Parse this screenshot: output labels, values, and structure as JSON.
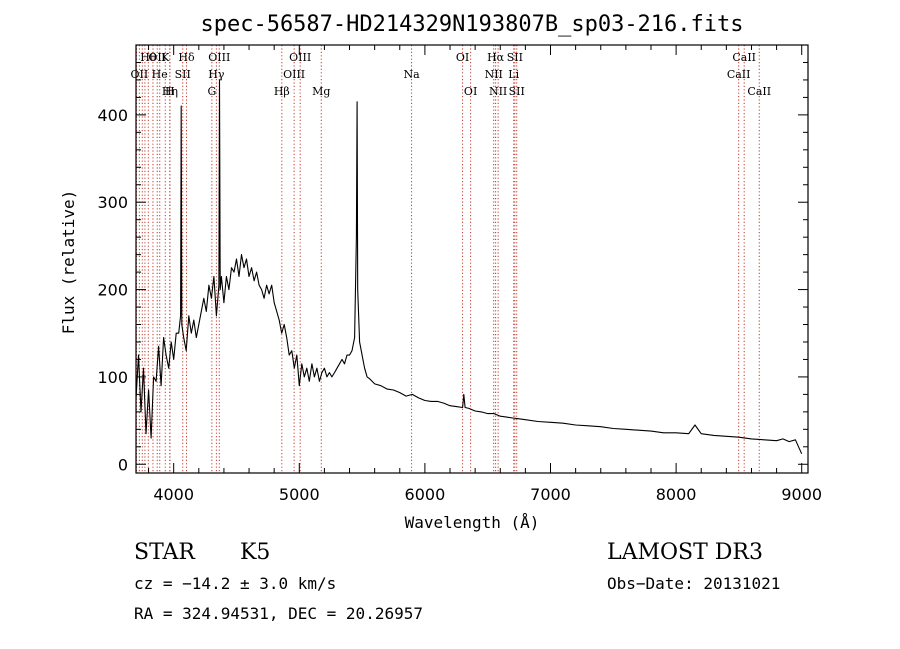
{
  "chart_data": {
    "type": "line",
    "title": "spec-56587-HD214329N193807B_sp03-216.fits",
    "xlabel": "Wavelength (Å)",
    "ylabel": "Flux (relative)",
    "xlim": [
      3700,
      9050
    ],
    "ylim": [
      -10,
      480
    ],
    "xticks": [
      4000,
      5000,
      6000,
      7000,
      8000,
      9000
    ],
    "yticks": [
      0,
      100,
      200,
      300,
      400
    ],
    "grid": false,
    "series": [
      {
        "name": "flux",
        "x": [
          3700,
          3720,
          3740,
          3760,
          3780,
          3800,
          3820,
          3840,
          3860,
          3880,
          3900,
          3920,
          3940,
          3960,
          3980,
          4000,
          4020,
          4040,
          4055,
          4060,
          4065,
          4080,
          4100,
          4120,
          4140,
          4160,
          4180,
          4200,
          4220,
          4240,
          4260,
          4280,
          4300,
          4320,
          4340,
          4360,
          4365,
          4370,
          4380,
          4400,
          4420,
          4440,
          4460,
          4480,
          4500,
          4520,
          4540,
          4560,
          4580,
          4600,
          4620,
          4640,
          4660,
          4680,
          4700,
          4720,
          4740,
          4760,
          4780,
          4800,
          4820,
          4840,
          4860,
          4880,
          4900,
          4920,
          4940,
          4960,
          4980,
          5000,
          5020,
          5040,
          5060,
          5080,
          5100,
          5120,
          5140,
          5160,
          5180,
          5200,
          5220,
          5240,
          5260,
          5280,
          5300,
          5320,
          5340,
          5360,
          5380,
          5400,
          5420,
          5440,
          5455,
          5460,
          5465,
          5480,
          5500,
          5520,
          5540,
          5560,
          5580,
          5600,
          5650,
          5700,
          5750,
          5800,
          5850,
          5900,
          5950,
          6000,
          6050,
          6100,
          6150,
          6200,
          6250,
          6300,
          6310,
          6320,
          6350,
          6400,
          6450,
          6500,
          6550,
          6600,
          6650,
          6700,
          6750,
          6800,
          6900,
          7000,
          7100,
          7200,
          7300,
          7400,
          7500,
          7600,
          7700,
          7800,
          7900,
          8000,
          8100,
          8150,
          8200,
          8300,
          8400,
          8500,
          8600,
          8700,
          8800,
          8850,
          8900,
          8950,
          9000
        ],
        "values": [
          75,
          125,
          60,
          110,
          35,
          85,
          30,
          100,
          95,
          135,
          90,
          145,
          125,
          110,
          140,
          120,
          150,
          150,
          170,
          410,
          160,
          145,
          130,
          170,
          150,
          165,
          145,
          160,
          175,
          190,
          175,
          205,
          190,
          215,
          170,
          205,
          440,
          200,
          215,
          185,
          215,
          200,
          225,
          220,
          235,
          215,
          240,
          225,
          235,
          215,
          225,
          210,
          220,
          205,
          200,
          190,
          205,
          195,
          205,
          185,
          175,
          165,
          150,
          160,
          145,
          125,
          130,
          110,
          125,
          90,
          115,
          100,
          110,
          95,
          115,
          100,
          110,
          95,
          105,
          110,
          100,
          105,
          100,
          105,
          110,
          115,
          120,
          115,
          125,
          125,
          130,
          145,
          260,
          415,
          200,
          140,
          125,
          110,
          100,
          98,
          95,
          92,
          90,
          86,
          85,
          82,
          78,
          80,
          76,
          73,
          72,
          72,
          70,
          67,
          66,
          65,
          80,
          65,
          64,
          61,
          60,
          58,
          58,
          55,
          54,
          53,
          52,
          51,
          49,
          48,
          47,
          45,
          44,
          43,
          41,
          40,
          39,
          38,
          36,
          36,
          35,
          45,
          35,
          33,
          32,
          31,
          29,
          28,
          27,
          29,
          26,
          28,
          12
        ]
      }
    ],
    "lines": [
      {
        "wave": 3704,
        "label": "",
        "row": 0
      },
      {
        "wave": 3727,
        "label": "OII",
        "row": 2
      },
      {
        "wave": 3750,
        "label": "",
        "row": 0
      },
      {
        "wave": 3771,
        "label": "",
        "row": 0
      },
      {
        "wave": 3798,
        "label": "Hθ",
        "row": 1
      },
      {
        "wave": 3835,
        "label": "",
        "row": 0
      },
      {
        "wave": 3869,
        "label": "OII",
        "row": 1
      },
      {
        "wave": 3889,
        "label": "He",
        "row": 2
      },
      {
        "wave": 3933,
        "label": "K",
        "row": 1
      },
      {
        "wave": 3970,
        "label": "Hη",
        "row": 3
      },
      {
        "wave": 3969,
        "label": "H",
        "row": 3
      },
      {
        "wave": 4072,
        "label": "SII",
        "row": 2
      },
      {
        "wave": 4102,
        "label": "Hδ",
        "row": 1
      },
      {
        "wave": 4304,
        "label": "G",
        "row": 3
      },
      {
        "wave": 4340,
        "label": "Hγ",
        "row": 2
      },
      {
        "wave": 4363,
        "label": "OIII",
        "row": 1
      },
      {
        "wave": 4861,
        "label": "Hβ",
        "row": 3
      },
      {
        "wave": 4959,
        "label": "OIII",
        "row": 2
      },
      {
        "wave": 5007,
        "label": "OIII",
        "row": 1
      },
      {
        "wave": 5175,
        "label": "Mg",
        "row": 3
      },
      {
        "wave": 5894,
        "label": "Na",
        "row": 2
      },
      {
        "wave": 6300,
        "label": "OI",
        "row": 1
      },
      {
        "wave": 6364,
        "label": "OI",
        "row": 3
      },
      {
        "wave": 6548,
        "label": "NII",
        "row": 2
      },
      {
        "wave": 6563,
        "label": "Hα",
        "row": 1
      },
      {
        "wave": 6583,
        "label": "NII",
        "row": 3
      },
      {
        "wave": 6707,
        "label": "Li",
        "row": 2
      },
      {
        "wave": 6716,
        "label": "SII",
        "row": 1
      },
      {
        "wave": 6731,
        "label": "SII",
        "row": 3
      },
      {
        "wave": 8498,
        "label": "CaII",
        "row": 2
      },
      {
        "wave": 8542,
        "label": "CaII",
        "row": 1
      },
      {
        "wave": 8662,
        "label": "CaII",
        "row": 3
      }
    ]
  },
  "info": {
    "object_class": "STAR",
    "subclass": "K5",
    "survey": "LAMOST DR3",
    "redshift": "cz = −14.2 ± 3.0 km/s",
    "obs_date": "Obs−Date: 20131021",
    "coords": "RA = 324.94531, DEC =  20.26957"
  }
}
